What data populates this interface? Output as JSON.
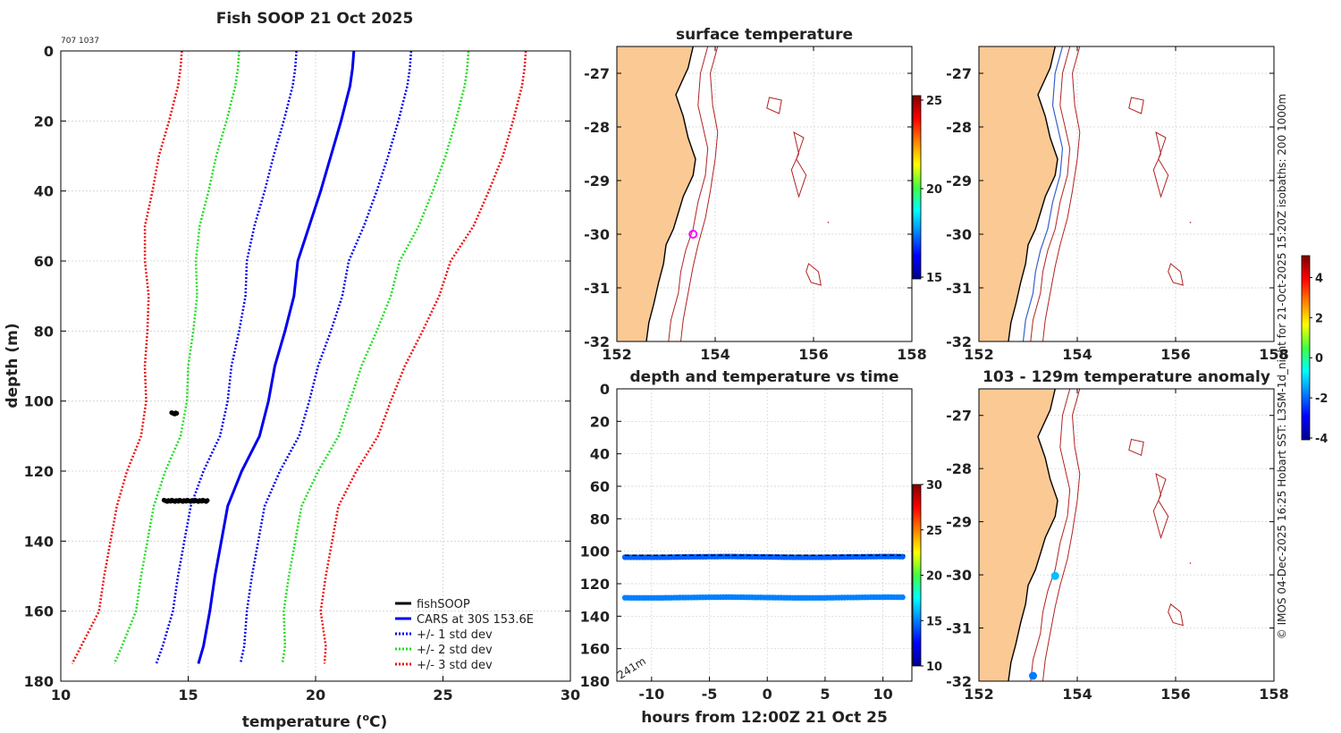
{
  "figure": {
    "title": "Fish SOOP 21 Oct 2025",
    "id_text": "707 1037",
    "footer": "© IMOS 04-Dec-2025 16:25 Hobart SST: L3SM-1d_night for 21-Oct-2025 15:20Z isobaths: 200  1000m",
    "colors": {
      "land": "#fbc994",
      "coast": "#000000",
      "isobath": "#b22222",
      "isobath_blue": "#3a5fcd",
      "grid": "#d0d0d0"
    }
  },
  "chart_data": [
    {
      "type": "line",
      "id": "profile",
      "xlabel": "temperature (",
      "xlabel_unit": "o",
      "xlabel_tail": "C)",
      "ylabel": "depth (m)",
      "xlim": [
        10,
        30
      ],
      "ylim": [
        0,
        180
      ],
      "xticks": [
        "10",
        "15",
        "20",
        "25",
        "30"
      ],
      "yticks": [
        "0",
        "20",
        "40",
        "60",
        "80",
        "100",
        "120",
        "140",
        "160",
        "180"
      ],
      "depths": [
        0,
        5,
        10,
        20,
        30,
        40,
        50,
        60,
        70,
        80,
        90,
        100,
        110,
        120,
        130,
        140,
        150,
        160,
        170,
        175
      ],
      "cars_mean": [
        21.5,
        21.45,
        21.35,
        21.0,
        20.6,
        20.2,
        19.75,
        19.3,
        19.15,
        18.8,
        18.4,
        18.15,
        17.8,
        17.1,
        16.55,
        16.3,
        16.05,
        15.85,
        15.6,
        15.4
      ],
      "std": [
        2.25,
        2.25,
        2.25,
        2.25,
        2.25,
        2.2,
        2.15,
        2.0,
        1.9,
        1.8,
        1.7,
        1.6,
        1.55,
        1.5,
        1.45,
        1.45,
        1.45,
        1.45,
        1.6,
        1.65
      ],
      "series": [
        {
          "name": "fishSOOP",
          "color": "#000000",
          "style": "solid"
        },
        {
          "name": "CARS at 30S 153.6E",
          "color": "#0000ee",
          "style": "solid"
        },
        {
          "name": "+/- 1 std dev",
          "color": "#0000ee",
          "style": "dotted"
        },
        {
          "name": "+/- 2 std dev",
          "color": "#22dd22",
          "style": "dotted"
        },
        {
          "name": "+/- 3 std dev",
          "color": "#ee1111",
          "style": "dotted"
        }
      ],
      "fish_clusters": [
        {
          "depth": 103.5,
          "temp_min": 14.35,
          "temp_max": 14.55
        },
        {
          "depth": 128.5,
          "temp_min": 14.05,
          "temp_max": 15.75
        }
      ],
      "legend_position": "bottom-right"
    },
    {
      "type": "map",
      "id": "map_sst",
      "title": "surface temperature",
      "xlim": [
        152,
        158
      ],
      "ylim": [
        -32,
        -26.5
      ],
      "xticks": [
        "152",
        "154",
        "156",
        "158"
      ],
      "yticks": [
        "-27",
        "-28",
        "-29",
        "-30",
        "-31",
        "-32"
      ],
      "marker": {
        "lon": 153.55,
        "lat": -30.0,
        "color": "#ff00ff"
      },
      "colorbar": {
        "min": 15,
        "max": 25,
        "ticks": [
          "15",
          "20",
          "25"
        ]
      }
    },
    {
      "type": "map",
      "id": "map_track",
      "title": "",
      "xlim": [
        152,
        158
      ],
      "ylim": [
        -32,
        -26.5
      ],
      "xticks": [
        "152",
        "154",
        "156",
        "158"
      ],
      "yticks": [
        "-27",
        "-28",
        "-29",
        "-30",
        "-31",
        "-32"
      ],
      "colorbar": {
        "min": -4,
        "max": 5,
        "ticks": [
          "4",
          "2",
          "0",
          "-2",
          "-4"
        ]
      }
    },
    {
      "type": "scatter",
      "id": "time_depth",
      "title": "depth and temperature vs time",
      "xlabel": "hours from 12:00Z 21 Oct 25",
      "xlim": [
        -13,
        12.5
      ],
      "ylim": [
        0,
        180
      ],
      "xticks": [
        "-10",
        "-5",
        "0",
        "5",
        "10"
      ],
      "yticks": [
        "0",
        "20",
        "40",
        "60",
        "80",
        "100",
        "120",
        "140",
        "160",
        "180"
      ],
      "bottom_depth_label": "241m",
      "bands": [
        {
          "depth": 103.5,
          "temp": 14.4,
          "dash_depth": 102.5
        },
        {
          "depth": 128.5,
          "temp": 15.0
        }
      ],
      "hours_range": [
        -12.3,
        11.9
      ],
      "colorbar": {
        "min": 10,
        "max": 30,
        "ticks": [
          "10",
          "15",
          "20",
          "25",
          "30"
        ]
      }
    },
    {
      "type": "map",
      "id": "map_anom",
      "title": "103 - 129m temperature anomaly",
      "xlim": [
        152,
        158
      ],
      "ylim": [
        -32,
        -26.5
      ],
      "xticks": [
        "152",
        "154",
        "156",
        "158"
      ],
      "yticks": [
        "-27",
        "-28",
        "-29",
        "-30",
        "-31",
        "-32"
      ],
      "points": [
        {
          "lon": 153.55,
          "lat": -30.02,
          "anomaly": -1.2
        },
        {
          "lon": 153.1,
          "lat": -31.9,
          "anomaly": -1.8
        }
      ]
    }
  ]
}
